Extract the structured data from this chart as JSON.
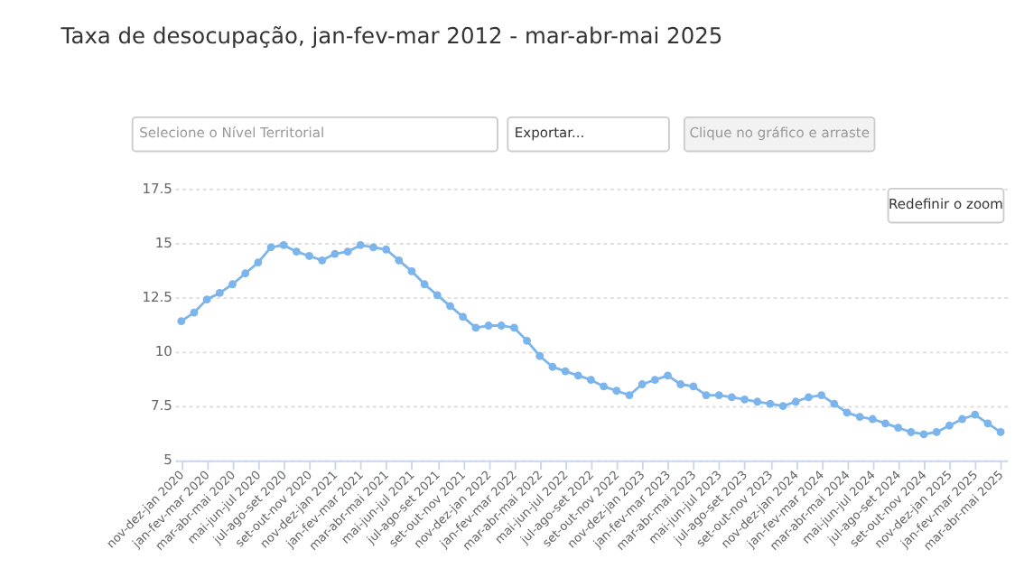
{
  "chart_data": {
    "type": "line",
    "title": "Taxa de desocupação, jan-fev-mar 2012 - mar-abr-mai 2025",
    "annotations": [
      "Selecione o Nível Territorial",
      "Exportar...",
      "Clique no gráfico e arraste",
      "Redefinir o zoom"
    ],
    "categories": [
      "nov-dez-jan 2020",
      null,
      "jan-fev-mar 2020",
      null,
      "mar-abr-mai 2020",
      null,
      "mai-jun-jul 2020",
      null,
      "jul-ago-set 2020",
      null,
      "set-out-nov 2020",
      null,
      "nov-dez-jan 2021",
      null,
      "jan-fev-mar 2021",
      null,
      "mar-abr-mai 2021",
      null,
      "mai-jun-jul 2021",
      null,
      "jul-ago-set 2021",
      null,
      "set-out-nov 2021",
      null,
      "nov-dez-jan 2022",
      null,
      "jan-fev-mar 2022",
      null,
      "mar-abr-mai 2022",
      null,
      "mai-jun-jul 2022",
      null,
      "jul-ago-set 2022",
      null,
      "set-out-nov 2022",
      null,
      "nov-dez-jan 2023",
      null,
      "jan-fev-mar 2023",
      null,
      "mar-abr-mai 2023",
      null,
      "mai-jun-jul 2023",
      null,
      "jul-ago-set 2023",
      null,
      "set-out-nov 2023",
      null,
      "nov-dez-jan 2024",
      null,
      "jan-fev-mar 2024",
      null,
      "mar-abr-mai 2024",
      null,
      "mai-jun-jul 2024",
      null,
      "jul-ago-set 2024",
      null,
      "set-out-nov 2024",
      null,
      "nov-dez-jan 2025",
      null,
      "jan-fev-mar 2025",
      null,
      "mar-abr-mai 2025"
    ],
    "series": [
      {
        "color": "#7cb5ec",
        "values": [
          11.4,
          11.8,
          12.4,
          12.7,
          13.1,
          13.6,
          14.1,
          14.8,
          14.9,
          14.6,
          14.4,
          14.2,
          14.5,
          14.6,
          14.9,
          14.8,
          14.7,
          14.2,
          13.7,
          13.1,
          12.6,
          12.1,
          11.6,
          11.1,
          11.2,
          11.2,
          11.1,
          10.5,
          9.8,
          9.3,
          9.1,
          8.9,
          8.7,
          8.4,
          8.2,
          8.0,
          8.5,
          8.7,
          8.9,
          8.5,
          8.4,
          8.0,
          8.0,
          7.9,
          7.8,
          7.7,
          7.6,
          7.5,
          7.7,
          7.9,
          8.0,
          7.6,
          7.2,
          7.0,
          6.9,
          6.7,
          6.5,
          6.3,
          6.2,
          6.3,
          6.6,
          6.9,
          7.1,
          6.7,
          6.3
        ]
      }
    ],
    "ylim": [
      5,
      17.5
    ],
    "yticks": [
      5,
      7.5,
      10,
      12.5,
      15,
      17.5
    ],
    "grid": "y",
    "marker": "circle",
    "line_style": "solid",
    "legend": false
  }
}
